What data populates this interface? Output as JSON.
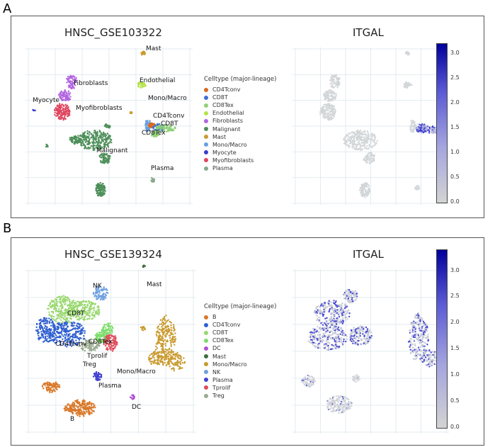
{
  "figure": {
    "panels": [
      {
        "letter": "A",
        "left_title": "HNSC_GSE103322",
        "right_title": "ITGAL",
        "legend_title": "Celltype (major-lineage)",
        "legend": [
          {
            "name": "CD4Tconv",
            "color": "#d96a1f"
          },
          {
            "name": "CD8T",
            "color": "#3f6fd8"
          },
          {
            "name": "CD8Tex",
            "color": "#8fd07a"
          },
          {
            "name": "Endothelial",
            "color": "#b5e24a"
          },
          {
            "name": "Fibroblasts",
            "color": "#b266e0"
          },
          {
            "name": "Malignant",
            "color": "#4e8f5a"
          },
          {
            "name": "Mast",
            "color": "#c99a2e"
          },
          {
            "name": "Mono/Macro",
            "color": "#6a9ee0"
          },
          {
            "name": "Myocyte",
            "color": "#3a3ad6"
          },
          {
            "name": "Myofibroblasts",
            "color": "#e0455f"
          },
          {
            "name": "Plasma",
            "color": "#8aa88a"
          }
        ],
        "cluster_labels": [
          "Mast",
          "Endothelial",
          "Fibroblasts",
          "Mono/Macro",
          "Myocyte",
          "Myofibroblasts",
          "CD4Tconv",
          "CD8T",
          "CD8Tex",
          "Malignant",
          "Plasma"
        ],
        "colorbar_ticks": [
          "3.0",
          "2.5",
          "2.0",
          "1.5",
          "1.0",
          "0.5",
          "0.0"
        ]
      },
      {
        "letter": "B",
        "left_title": "HNSC_GSE139324",
        "right_title": "ITGAL",
        "legend_title": "Celltype (major-lineage)",
        "legend": [
          {
            "name": "B",
            "color": "#d9782a"
          },
          {
            "name": "CD4Tconv",
            "color": "#2f5fd0"
          },
          {
            "name": "CD8T",
            "color": "#9ad870"
          },
          {
            "name": "CD8Tex",
            "color": "#7ddc6a"
          },
          {
            "name": "DC",
            "color": "#b04fd6"
          },
          {
            "name": "Mast",
            "color": "#3e6e3e"
          },
          {
            "name": "Mono/Macro",
            "color": "#c99a2e"
          },
          {
            "name": "NK",
            "color": "#6fa0e0"
          },
          {
            "name": "Plasma",
            "color": "#4040d0"
          },
          {
            "name": "Tprolif",
            "color": "#e04a5a"
          },
          {
            "name": "Treg",
            "color": "#9aaa90"
          }
        ],
        "cluster_labels": [
          "NK",
          "Mast",
          "CD8T",
          "CD8Tex",
          "CD4Tconv",
          "Tprolif",
          "Treg",
          "Mono/Macro",
          "Plasma",
          "DC",
          "B"
        ],
        "colorbar_ticks": [
          "3.0",
          "2.5",
          "2.0",
          "1.5",
          "1.0",
          "0.5",
          "0.0"
        ]
      }
    ]
  },
  "chart_data": [
    {
      "type": "scatter",
      "title": "HNSC_GSE103322",
      "subtype": "UMAP colored by cell type",
      "legend_title": "Celltype (major-lineage)",
      "categories": [
        "CD4Tconv",
        "CD8T",
        "CD8Tex",
        "Endothelial",
        "Fibroblasts",
        "Malignant",
        "Mast",
        "Mono/Macro",
        "Myocyte",
        "Myofibroblasts",
        "Plasma"
      ]
    },
    {
      "type": "scatter",
      "title": "ITGAL",
      "subtype": "UMAP colored by expression",
      "colorbar_range": [
        0.0,
        3.2
      ],
      "colorbar_ticks": [
        0.0,
        0.5,
        1.0,
        1.5,
        2.0,
        2.5,
        3.0
      ]
    },
    {
      "type": "scatter",
      "title": "HNSC_GSE139324",
      "subtype": "UMAP colored by cell type",
      "legend_title": "Celltype (major-lineage)",
      "categories": [
        "B",
        "CD4Tconv",
        "CD8T",
        "CD8Tex",
        "DC",
        "Mast",
        "Mono/Macro",
        "NK",
        "Plasma",
        "Tprolif",
        "Treg"
      ]
    },
    {
      "type": "scatter",
      "title": "ITGAL",
      "subtype": "UMAP colored by expression",
      "colorbar_range": [
        0.0,
        3.4
      ],
      "colorbar_ticks": [
        0.0,
        0.5,
        1.0,
        1.5,
        2.0,
        2.5,
        3.0
      ]
    }
  ]
}
